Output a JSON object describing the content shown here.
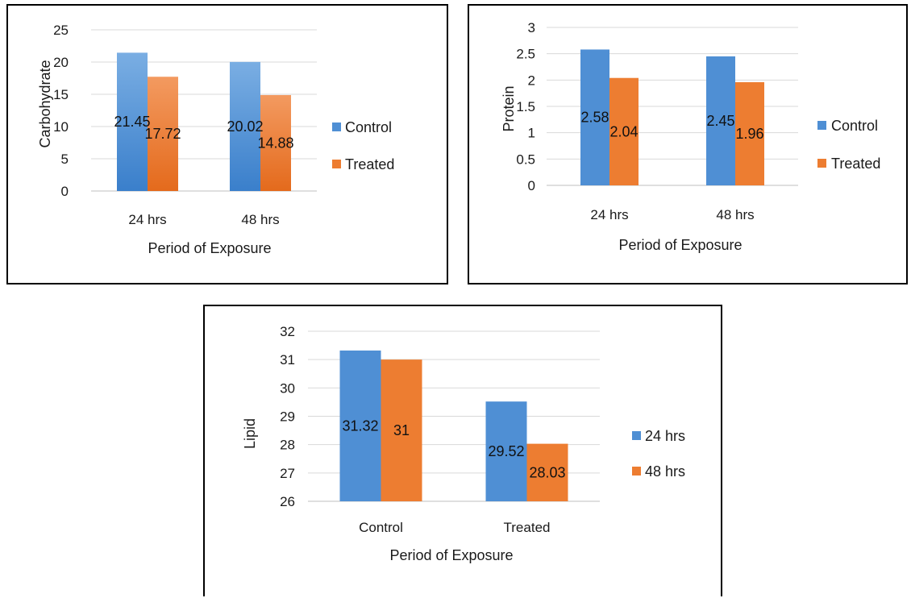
{
  "colors": {
    "series_a": "#4f8fd4",
    "series_b": "#ed7d31",
    "grid": "#d9d9d9",
    "axis": "#bfbfbf"
  },
  "chart_data": [
    {
      "type": "bar",
      "categories": [
        "24 hrs",
        "48 hrs"
      ],
      "series": [
        {
          "name": "Control",
          "values": [
            21.45,
            20.02
          ],
          "labels": [
            "21.45",
            "20.02"
          ],
          "color": "#4f8fd4"
        },
        {
          "name": "Treated",
          "values": [
            17.72,
            14.88
          ],
          "labels": [
            "17.72",
            "14.88"
          ],
          "color": "#ed7d31"
        }
      ],
      "xlabel": "Period of Exposure",
      "ylabel": "Carbohydrate",
      "ylim": [
        0,
        25
      ],
      "yticks": [
        "0",
        "5",
        "10",
        "15",
        "20",
        "25"
      ],
      "grid": true,
      "legend": "right",
      "style": "gradient"
    },
    {
      "type": "bar",
      "categories": [
        "24 hrs",
        "48 hrs"
      ],
      "series": [
        {
          "name": "Control",
          "values": [
            2.58,
            2.45
          ],
          "labels": [
            "2.58",
            "2.45"
          ],
          "color": "#4f8fd4"
        },
        {
          "name": "Treated",
          "values": [
            2.04,
            1.96
          ],
          "labels": [
            "2.04",
            "1.96"
          ],
          "color": "#ed7d31"
        }
      ],
      "xlabel": "Period of Exposure",
      "ylabel": "Protein",
      "ylim": [
        0,
        3
      ],
      "yticks": [
        "0",
        "0.5",
        "1",
        "1.5",
        "2",
        "2.5",
        "3"
      ],
      "grid": true,
      "legend": "right",
      "style": "flat"
    },
    {
      "type": "bar",
      "categories": [
        "Control",
        "Treated"
      ],
      "series": [
        {
          "name": "24 hrs",
          "values": [
            31.32,
            29.52
          ],
          "labels": [
            "31.32",
            "29.52"
          ],
          "color": "#4f8fd4"
        },
        {
          "name": "48 hrs",
          "values": [
            31,
            28.03
          ],
          "labels": [
            "31",
            "28.03"
          ],
          "color": "#ed7d31"
        }
      ],
      "xlabel": "Period of Exposure",
      "ylabel": "Lipid",
      "ylim": [
        26,
        32
      ],
      "yticks": [
        "26",
        "27",
        "28",
        "29",
        "30",
        "31",
        "32"
      ],
      "grid": true,
      "legend": "right",
      "style": "flat"
    }
  ]
}
